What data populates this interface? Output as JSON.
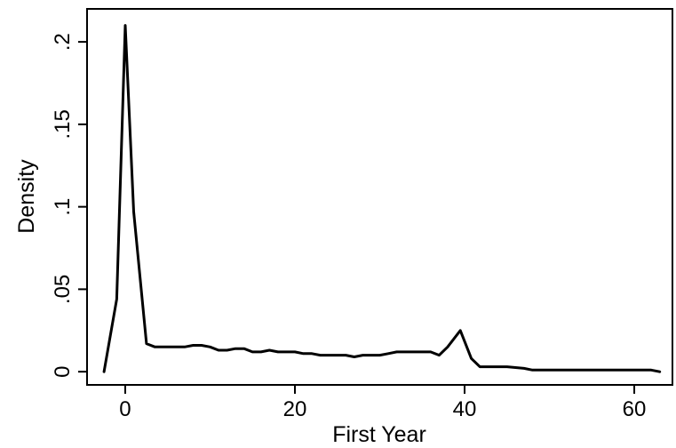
{
  "chart_data": {
    "type": "line",
    "title": "",
    "xlabel": "First Year",
    "ylabel": "Density",
    "xlim": [
      -4.5,
      64.5
    ],
    "ylim": [
      -0.008,
      0.22
    ],
    "x_ticks": [
      0,
      20,
      40,
      60
    ],
    "x_tick_labels": [
      "0",
      "20",
      "40",
      "60"
    ],
    "y_ticks": [
      0,
      0.05,
      0.1,
      0.15,
      0.2
    ],
    "y_tick_labels": [
      "0",
      ".05",
      ".1",
      ".15",
      ".2"
    ],
    "grid": false,
    "legend": "none",
    "line_color": "#000000",
    "series": [
      {
        "x": [
          -2.5,
          -1,
          0,
          1,
          2.5,
          3.5,
          5,
          6,
          7,
          8,
          9,
          10,
          11,
          12,
          13,
          14,
          15,
          16,
          17,
          18,
          19,
          20,
          21,
          22,
          23,
          24,
          25,
          26,
          27,
          28,
          29,
          30,
          31,
          32,
          33,
          34,
          35,
          36,
          37,
          38,
          39.5,
          40.8,
          41.8,
          43,
          45,
          47,
          48,
          49,
          50,
          51,
          52,
          53,
          54,
          55,
          56,
          57,
          58,
          59,
          60,
          61,
          62,
          63
        ],
        "y": [
          0.0,
          0.044,
          0.21,
          0.097,
          0.017,
          0.015,
          0.015,
          0.015,
          0.015,
          0.016,
          0.016,
          0.015,
          0.013,
          0.013,
          0.014,
          0.014,
          0.012,
          0.012,
          0.013,
          0.012,
          0.012,
          0.012,
          0.011,
          0.011,
          0.01,
          0.01,
          0.01,
          0.01,
          0.009,
          0.01,
          0.01,
          0.01,
          0.011,
          0.012,
          0.012,
          0.012,
          0.012,
          0.012,
          0.01,
          0.015,
          0.025,
          0.008,
          0.003,
          0.003,
          0.003,
          0.002,
          0.001,
          0.001,
          0.001,
          0.001,
          0.001,
          0.001,
          0.001,
          0.001,
          0.001,
          0.001,
          0.001,
          0.001,
          0.001,
          0.001,
          0.001,
          0.0
        ]
      }
    ]
  }
}
